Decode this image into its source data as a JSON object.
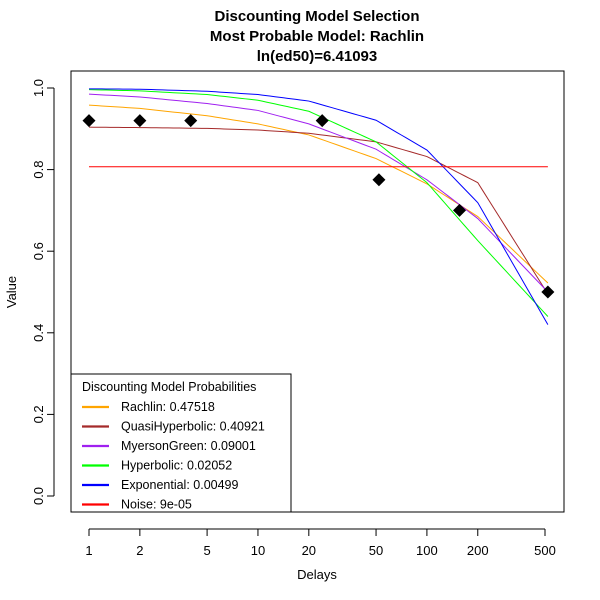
{
  "chart_data": {
    "type": "line",
    "title_lines": [
      "Discounting Model Selection",
      "Most Probable Model: Rachlin",
      "ln(ed50)=6.41093"
    ],
    "xlabel": "Delays",
    "ylabel": "Value",
    "x_scale": "log",
    "xlim": [
      1,
      500
    ],
    "ylim": [
      0,
      1
    ],
    "x_ticks": [
      1,
      2,
      5,
      10,
      20,
      50,
      100,
      200,
      500
    ],
    "x_tick_labels": [
      "1",
      "2",
      "5",
      "10",
      "20",
      "50",
      "100",
      "200",
      "500"
    ],
    "y_ticks": [
      0,
      0.2,
      0.4,
      0.6,
      0.8,
      1
    ],
    "y_tick_labels": [
      "0.0",
      "0.2",
      "0.4",
      "0.6",
      "0.8",
      "1.0"
    ],
    "grid": false,
    "legend": {
      "title": "Discounting Model Probabilities",
      "placement": "bottom-left",
      "entries": [
        {
          "label": "Rachlin: 0.47518",
          "color": "#FFA500"
        },
        {
          "label": "QuasiHyperbolic: 0.40921",
          "color": "#A52A2A"
        },
        {
          "label": "MyersonGreen: 0.09001",
          "color": "#A020F0"
        },
        {
          "label": "Hyperbolic: 0.02052",
          "color": "#00FF00"
        },
        {
          "label": "Exponential: 0.00499",
          "color": "#0000FF"
        },
        {
          "label": "Noise: 9e-05",
          "color": "#FF0000"
        }
      ]
    },
    "points": {
      "x": [
        1,
        2,
        4,
        24,
        52,
        156,
        520
      ],
      "y": [
        0.92,
        0.92,
        0.92,
        0.92,
        0.775,
        0.7,
        0.5
      ],
      "marker": "diamond",
      "color": "#000000"
    },
    "series": [
      {
        "name": "Rachlin",
        "color": "#FFA500",
        "x": [
          1,
          2,
          5,
          10,
          20,
          50,
          100,
          200,
          520
        ],
        "y": [
          0.958,
          0.95,
          0.932,
          0.912,
          0.885,
          0.827,
          0.765,
          0.685,
          0.522
        ]
      },
      {
        "name": "QuasiHyperbolic",
        "color": "#A52A2A",
        "x": [
          1,
          2,
          5,
          10,
          20,
          50,
          100,
          200,
          520
        ],
        "y": [
          0.904,
          0.903,
          0.901,
          0.897,
          0.889,
          0.868,
          0.832,
          0.768,
          0.495
        ]
      },
      {
        "name": "MyersonGreen",
        "color": "#A020F0",
        "x": [
          1,
          2,
          5,
          10,
          20,
          50,
          100,
          200,
          520
        ],
        "y": [
          0.985,
          0.978,
          0.962,
          0.945,
          0.912,
          0.85,
          0.775,
          0.68,
          0.5
        ]
      },
      {
        "name": "Hyperbolic",
        "color": "#00FF00",
        "x": [
          1,
          2,
          5,
          10,
          20,
          50,
          100,
          200,
          520
        ],
        "y": [
          0.996,
          0.993,
          0.984,
          0.97,
          0.943,
          0.868,
          0.768,
          0.626,
          0.44
        ]
      },
      {
        "name": "Exponential",
        "color": "#0000FF",
        "x": [
          1,
          2,
          5,
          10,
          20,
          50,
          100,
          200,
          520
        ],
        "y": [
          0.998,
          0.997,
          0.992,
          0.984,
          0.968,
          0.921,
          0.848,
          0.719,
          0.42
        ]
      },
      {
        "name": "Noise",
        "color": "#FF0000",
        "x": [
          1,
          520
        ],
        "y": [
          0.807,
          0.807
        ]
      }
    ]
  }
}
